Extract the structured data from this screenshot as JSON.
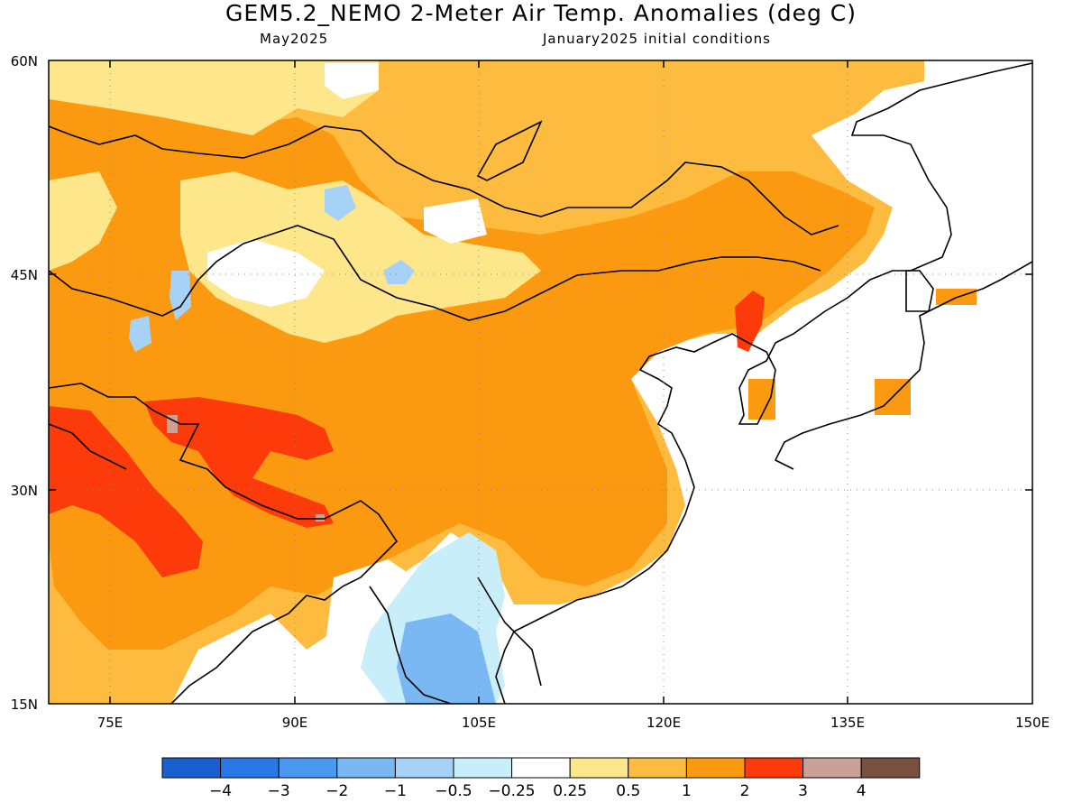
{
  "header": {
    "title": "GEM5.2_NEMO 2-Meter Air Temp. Anomalies (deg C)",
    "subtitle_left": "May2025",
    "subtitle_right": "January2025 initial conditions"
  },
  "map": {
    "lon_range": [
      70,
      150
    ],
    "lat_range": [
      15,
      60
    ],
    "x_ticks": [
      "75E",
      "90E",
      "105E",
      "120E",
      "135E",
      "150E"
    ],
    "y_ticks": [
      "60N",
      "45N",
      "30N",
      "15N"
    ],
    "grid": "dotted"
  },
  "legend": {
    "labels": [
      "-4",
      "-3",
      "-2",
      "-1",
      "-0.5",
      "-0.25",
      "0.25",
      "0.5",
      "1",
      "2",
      "3",
      "4"
    ],
    "colors": [
      "#1a5fd0",
      "#2a78e8",
      "#4a98f0",
      "#7ab8f4",
      "#a6d2f8",
      "#c8eefa",
      "#ffffff",
      "#fee78a",
      "#fdbc40",
      "#fb9a10",
      "#fc3a0a",
      "#c9a196",
      "#7a5141"
    ]
  }
}
